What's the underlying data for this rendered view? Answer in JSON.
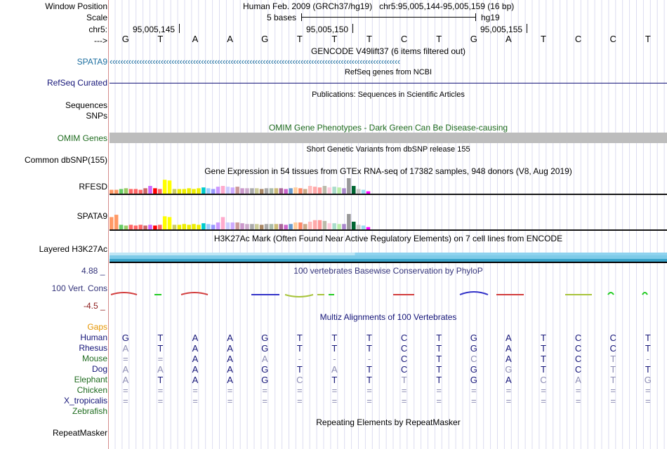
{
  "header": {
    "window_position_label": "Window Position",
    "window_position_text": "Human Feb. 2009 (GRCh37/hg19)   chr5:95,005,144-95,005,159 (16 bp)",
    "scale_label": "Scale",
    "scale_bases": "5 bases",
    "scale_assembly": "hg19",
    "chrom_label": "chr5:",
    "positions": [
      "95,005,145",
      "95,005,150",
      "95,005,155"
    ],
    "strand_label": "--->",
    "sequence": [
      "G",
      "T",
      "A",
      "A",
      "G",
      "T",
      "T",
      "T",
      "C",
      "T",
      "G",
      "A",
      "T",
      "C",
      "C",
      "T"
    ]
  },
  "tracks": {
    "gencode": {
      "title": "GENCODE V49lift37 (6 items filtered out)",
      "label": "SPATA9",
      "glyphs": "‹‹‹‹‹‹‹‹‹‹‹‹‹‹‹‹‹‹‹‹‹‹‹‹‹‹‹‹‹‹‹‹‹‹‹‹‹‹‹‹‹‹‹‹‹‹‹‹‹‹‹‹‹‹‹‹‹‹‹‹‹‹‹‹‹‹‹‹‹‹‹‹‹‹‹‹‹‹‹‹‹‹‹‹‹‹‹‹‹‹‹‹‹‹‹‹‹‹‹‹‹‹‹‹‹‹‹‹",
      "color": "#1d6fa0"
    },
    "refseq": {
      "title": "RefSeq genes from NCBI",
      "label": "RefSeq Curated",
      "color": "#141478"
    },
    "publications": {
      "title": "Publications: Sequences in Scientific Articles",
      "label": "Sequences"
    },
    "snps_label": "SNPs",
    "omim": {
      "title": "OMIM Gene Phenotypes - Dark Green Can Be Disease-causing",
      "label": "OMIM Genes",
      "color": "#1e6b1e"
    },
    "dbsnp": {
      "title": "Short Genetic Variants from dbSNP release 155",
      "label": "Common dbSNP(155)"
    },
    "gtex": {
      "title": "Gene Expression in 54 tissues from GTEx RNA-seq of 17382 samples, 948 donors (V8, Aug 2019)",
      "genes": [
        {
          "name": "RFESD",
          "values": [
            0.25,
            0.25,
            0.3,
            0.35,
            0.3,
            0.3,
            0.25,
            0.35,
            0.5,
            0.35,
            0.3,
            0.9,
            0.85,
            0.3,
            0.3,
            0.3,
            0.35,
            0.3,
            0.35,
            0.4,
            0.35,
            0.3,
            0.45,
            0.5,
            0.45,
            0.4,
            0.45,
            0.35,
            0.35,
            0.35,
            0.35,
            0.3,
            0.35,
            0.35,
            0.35,
            0.35,
            0.3,
            0.35,
            0.4,
            0.35,
            0.3,
            0.5,
            0.45,
            0.4,
            0.5,
            0.4,
            0.45,
            0.4,
            0.35,
            1.0,
            0.5,
            0.3,
            0.25,
            0.15
          ]
        },
        {
          "name": "SPATA9",
          "values": [
            0.8,
            0.95,
            0.3,
            0.25,
            0.3,
            0.25,
            0.3,
            0.25,
            0.3,
            0.25,
            0.3,
            0.85,
            0.8,
            0.3,
            0.3,
            0.35,
            0.3,
            0.35,
            0.3,
            0.4,
            0.35,
            0.3,
            0.45,
            0.8,
            0.45,
            0.45,
            0.45,
            0.4,
            0.35,
            0.35,
            0.35,
            0.3,
            0.35,
            0.35,
            0.35,
            0.35,
            0.3,
            0.35,
            0.45,
            0.45,
            0.35,
            0.5,
            0.6,
            0.6,
            0.55,
            0.4,
            0.4,
            0.35,
            0.35,
            1.0,
            0.5,
            0.3,
            0.25,
            0.15
          ]
        }
      ],
      "colors": [
        "#ff9966",
        "#ff9966",
        "#66cc66",
        "#99cc66",
        "#ff6666",
        "#ff6666",
        "#ff6666",
        "#cc6666",
        "#cc66ff",
        "#ff0000",
        "#ff6666",
        "#ffff00",
        "#ffff00",
        "#cccc66",
        "#eeee00",
        "#eeee00",
        "#eeee00",
        "#eeee00",
        "#eeee00",
        "#00cccc",
        "#99ccff",
        "#9999ff",
        "#cc99ff",
        "#ffaacc",
        "#ccccff",
        "#ccaaff",
        "#cc9999",
        "#cc99cc",
        "#ccaacc",
        "#aaaaaa",
        "#cccc99",
        "#aa8866",
        "#aaaaaa",
        "#aabbaa",
        "#ccbb77",
        "#aa6699",
        "#cc66cc",
        "#6699cc",
        "#ffcc99",
        "#ff8866",
        "#ccaa88",
        "#ffbbbb",
        "#ffaaaa",
        "#ff9999",
        "#bbbbaa",
        "#ffccdd",
        "#aaddcc",
        "#bbeeaa",
        "#aa88cc",
        "#999999",
        "#006633",
        "#cccccc",
        "#99ddee",
        "#ff00ff"
      ]
    },
    "h3k27ac": {
      "title": "H3K27Ac Mark (Often Found Near Active Regulatory Elements) on 7 cell lines from ENCODE",
      "label": "Layered H3K27Ac"
    },
    "phylop": {
      "title": "100 vertebrates Basewise Conservation by PhyloP",
      "label": "100 Vert. Cons",
      "max": "4.88 _",
      "min": "-4.5 _",
      "color": "#33337a"
    },
    "multiz": {
      "title": "Multiz Alignments of 100 Vertebrates",
      "gaps_label": "Gaps",
      "species": [
        {
          "name": "Human",
          "seq": [
            "G",
            "T",
            "A",
            "A",
            "G",
            "T",
            "T",
            "T",
            "C",
            "T",
            "G",
            "A",
            "T",
            "C",
            "C",
            "T"
          ]
        },
        {
          "name": "Rhesus",
          "seq": [
            "A",
            "T",
            "A",
            "A",
            "G",
            "T",
            "T",
            "T",
            "C",
            "T",
            "G",
            "A",
            "T",
            "C",
            "C",
            "T"
          ]
        },
        {
          "name": "Mouse",
          "seq": [
            "=",
            "=",
            "A",
            "A",
            "A",
            "-",
            "-",
            "-",
            "C",
            "T",
            "C",
            "A",
            "T",
            "C",
            "T",
            "-"
          ]
        },
        {
          "name": "Dog",
          "seq": [
            "A",
            "A",
            "A",
            "A",
            "G",
            "T",
            "A",
            "T",
            "C",
            "T",
            "G",
            "G",
            "T",
            "C",
            "T",
            "T"
          ]
        },
        {
          "name": "Elephant",
          "seq": [
            "A",
            "T",
            "A",
            "A",
            "G",
            "C",
            "T",
            "T",
            "T",
            "T",
            "G",
            "A",
            "C",
            "A",
            "T",
            "G"
          ]
        },
        {
          "name": "Chicken",
          "seq": [
            "=",
            "=",
            "=",
            "=",
            "=",
            "=",
            "=",
            "=",
            "=",
            "=",
            "=",
            "=",
            "=",
            "=",
            "=",
            "="
          ]
        },
        {
          "name": "X_tropicalis",
          "seq": [
            "=",
            "=",
            "=",
            "=",
            "=",
            "=",
            "=",
            "=",
            "=",
            "=",
            "=",
            "=",
            "=",
            "=",
            "=",
            "="
          ]
        },
        {
          "name": "Zebrafish",
          "seq": []
        }
      ]
    },
    "repeatmasker": {
      "title": "Repeating Elements by RepeatMasker",
      "label": "RepeatMasker"
    }
  }
}
